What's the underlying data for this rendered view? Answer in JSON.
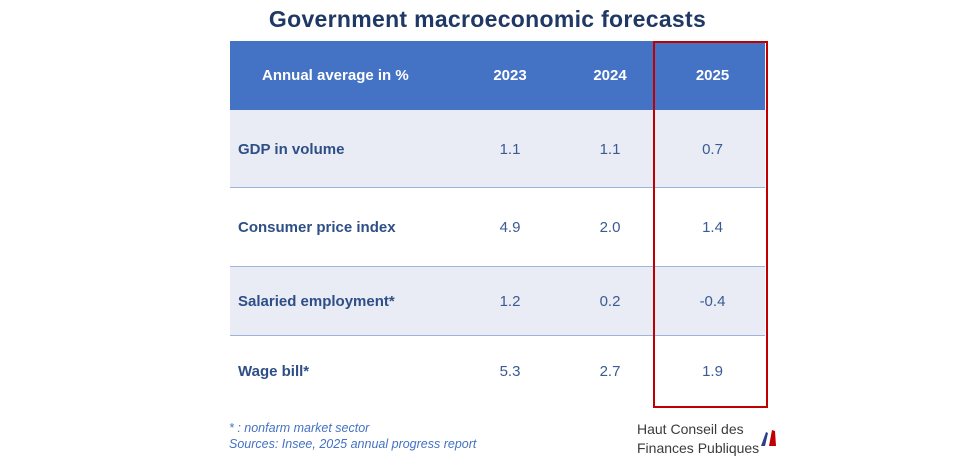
{
  "title": "Government macroeconomic forecasts",
  "chart_data": {
    "type": "table",
    "title": "Government macroeconomic forecasts",
    "header": [
      "Annual average in %",
      "2023",
      "2024",
      "2025"
    ],
    "rows": [
      {
        "label": "GDP in volume",
        "values": [
          "1.1",
          "1.1",
          "0.7"
        ]
      },
      {
        "label": "Consumer price index",
        "values": [
          "4.9",
          "2.0",
          "1.4"
        ]
      },
      {
        "label": "Salaried employment*",
        "values": [
          "1.2",
          "0.2",
          "-0.4"
        ]
      },
      {
        "label": "Wage bill*",
        "values": [
          "5.3",
          "2.7",
          "1.9"
        ]
      }
    ],
    "highlighted_column": "2025"
  },
  "notes": {
    "line1": "* : nonfarm market sector",
    "line2": "Sources: Insee, 2025 annual progress report"
  },
  "logo": {
    "line1": "Haut Conseil des",
    "line2": "Finances Publiques"
  },
  "colors": {
    "header_bg": "#4472c4",
    "band_bg": "#e9ebf5",
    "highlight": "#c00000",
    "title": "#1f3864"
  }
}
